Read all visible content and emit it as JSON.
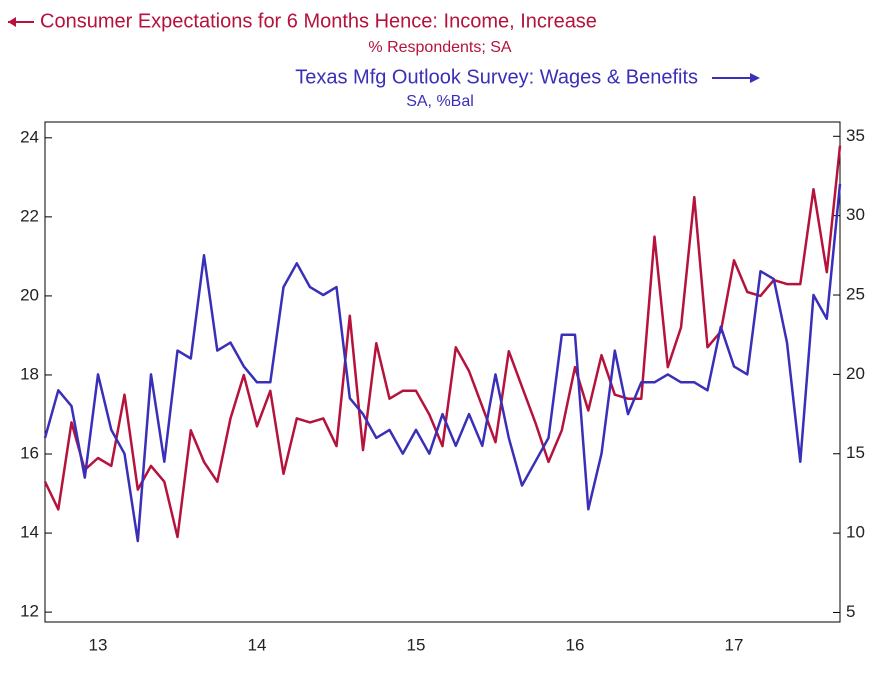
{
  "chart_data": {
    "type": "line",
    "title": "Consumer Expectations for 6 Months Hence: Income, Increase",
    "subtitle": "% Respondents; SA",
    "title2": "Texas Mfg Outlook Survey: Wages & Benefits",
    "subtitle2": "SA, %Bal",
    "categories": [
      null,
      null,
      null,
      null,
      "13",
      null,
      null,
      null,
      null,
      null,
      null,
      null,
      null,
      null,
      null,
      null,
      "14",
      null,
      null,
      null,
      null,
      null,
      null,
      null,
      null,
      null,
      null,
      null,
      "15",
      null,
      null,
      null,
      null,
      null,
      null,
      null,
      null,
      null,
      null,
      null,
      "16",
      null,
      null,
      null,
      null,
      null,
      null,
      null,
      null,
      null,
      null,
      null,
      "17",
      null,
      null,
      null,
      null,
      null,
      null,
      null,
      null
    ],
    "series": [
      {
        "name": "Consumer Expectations for 6 Months Hence: Income, Increase",
        "color": "#b5123c",
        "axis": "y",
        "values": [
          15.3,
          14.6,
          16.8,
          15.6,
          15.9,
          15.7,
          17.5,
          15.1,
          15.7,
          15.3,
          13.9,
          16.6,
          15.8,
          15.3,
          16.9,
          18.0,
          16.7,
          17.6,
          15.5,
          16.9,
          16.8,
          16.9,
          16.2,
          19.5,
          16.1,
          18.8,
          17.4,
          17.6,
          17.6,
          17.0,
          16.2,
          18.7,
          18.1,
          17.2,
          16.3,
          18.6,
          17.7,
          16.8,
          15.8,
          16.6,
          18.2,
          17.1,
          18.5,
          17.5,
          17.4,
          17.4,
          21.5,
          18.2,
          19.2,
          22.5,
          18.7,
          19.1,
          20.9,
          20.1,
          20.0,
          20.4,
          20.3,
          20.3,
          22.7,
          20.6,
          23.8
        ]
      },
      {
        "name": "Texas Mfg Outlook Survey: Wages & Benefits",
        "color": "#3a2fb8",
        "axis": "y2",
        "values": [
          16,
          19,
          18,
          13.5,
          20,
          16.5,
          15,
          9.5,
          20,
          14.5,
          21.5,
          21,
          27.5,
          21.5,
          22,
          20.5,
          19.5,
          19.5,
          25.5,
          27,
          25.5,
          25,
          25.5,
          18.5,
          17.5,
          16,
          16.5,
          15,
          16.5,
          15,
          17.5,
          15.5,
          17.5,
          15.5,
          20,
          16,
          13,
          14.5,
          16,
          22.5,
          22.5,
          11.5,
          15,
          21.5,
          17.5,
          19.5,
          19.5,
          20,
          19.5,
          19.5,
          19,
          23,
          20.5,
          20,
          26.5,
          26,
          22,
          14.5,
          25,
          23.5,
          32
        ]
      }
    ],
    "ylim": [
      11.75,
      24.4
    ],
    "yticks": [
      12,
      14,
      16,
      18,
      20,
      22,
      24
    ],
    "y2lim": [
      4.4,
      35.9
    ],
    "y2ticks": [
      5,
      10,
      15,
      20,
      25,
      30,
      35
    ]
  }
}
